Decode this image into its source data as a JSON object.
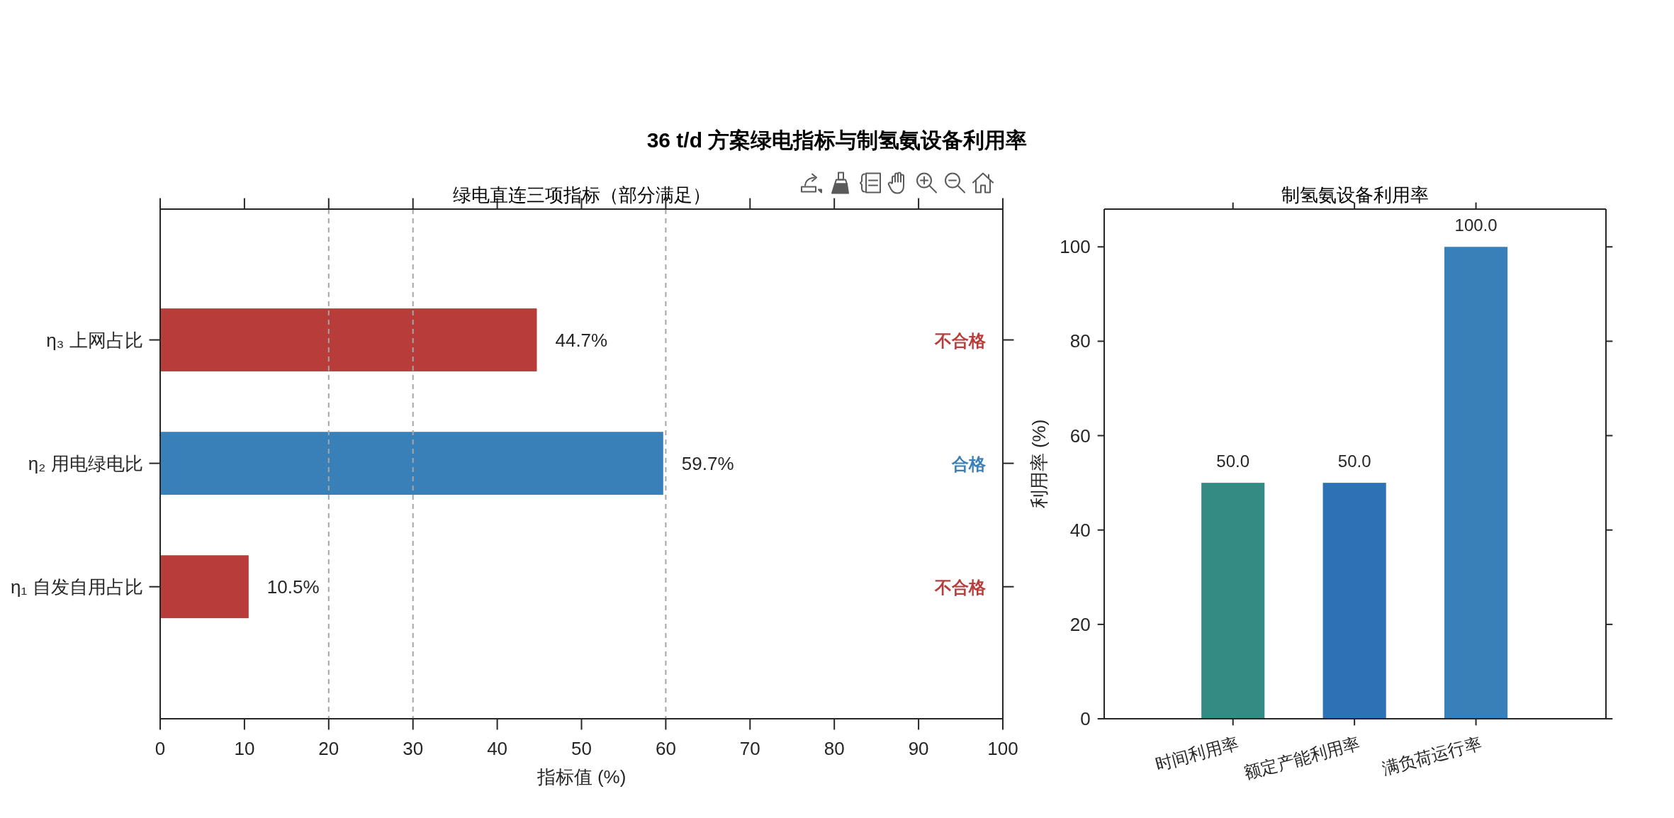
{
  "chart_data": [
    {
      "type": "other",
      "title": "36 t/d 方案绿电指标与制氢氨设备利用率"
    },
    {
      "type": "bar",
      "orientation": "horizontal",
      "title": "绿电直连三项指标（部分满足）",
      "xlabel": "指标值 (%)",
      "categories": [
        "η₃ 上网占比",
        "η₂ 用电绿电比",
        "η₁ 自发自用占比"
      ],
      "values": [
        44.7,
        59.7,
        10.5
      ],
      "colors": [
        "#b73c3a",
        "#3a80b8",
        "#b73c3a"
      ],
      "value_labels": [
        "44.7%",
        "59.7%",
        "10.5%"
      ],
      "xlim": [
        0,
        100
      ],
      "xticks": [
        0,
        10,
        20,
        30,
        40,
        50,
        60,
        70,
        80,
        90,
        100
      ],
      "ref_lines": [
        {
          "axis": "x",
          "value": 20,
          "color": "#a6a6a6",
          "line_style": "dashed"
        },
        {
          "axis": "x",
          "value": 30,
          "color": "#a6a6a6",
          "line_style": "dashed"
        },
        {
          "axis": "x",
          "value": 60,
          "color": "#a6a6a6",
          "line_style": "dashed"
        }
      ],
      "annotations": [
        "不合格",
        "合格",
        "不合格"
      ]
    },
    {
      "type": "bar",
      "title": "制氢氨设备利用率",
      "ylabel": "利用率 (%)",
      "categories": [
        "时间利用率",
        "额定产能利用率",
        "满负荷运行率"
      ],
      "values": [
        50,
        50,
        100
      ],
      "colors": [
        "#338b84",
        "#2e72b5",
        "#3a80b8"
      ],
      "value_labels": [
        "50.0",
        "50.0",
        "100.0"
      ],
      "ylim": [
        0,
        108
      ],
      "yticks": [
        0,
        20,
        40,
        60,
        80,
        100
      ]
    }
  ]
}
